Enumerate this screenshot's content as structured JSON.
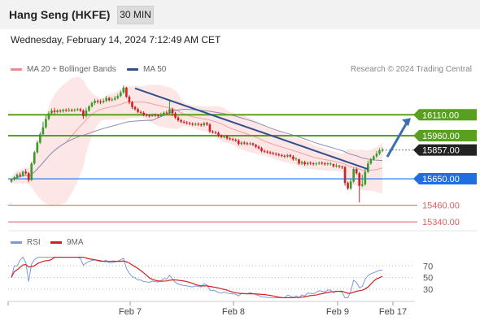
{
  "header": {
    "title": "Hang Seng (HKFE)",
    "interval": "30 MIN"
  },
  "timestamp": "Wednesday, February 14, 2024 7:12:49 AM CET",
  "legend": {
    "bollinger": "MA 20 + Bollinger Bands",
    "ma50": "MA 50",
    "credit": "Research © 2024 Trading Central"
  },
  "rsi_legend": {
    "rsi": "RSI",
    "ma": "9MA"
  },
  "colors": {
    "up": "#3a9a2a",
    "down": "#d01f1f",
    "trend": "#2f4f8f",
    "target": "#3b6fb0",
    "resistance": "#5aa020",
    "support_blue": "#1f6fe0",
    "support_red": "#e06060",
    "band": "#fde0e0",
    "ma50": "#8a8fb8",
    "rsi": "#7a9ad8",
    "rsi_ma": "#d02020"
  },
  "chart_data": {
    "type": "candlestick",
    "price_ylim": [
      15300,
      16380
    ],
    "levels": [
      {
        "label": "16110.00",
        "value": 16110,
        "kind": "resistance"
      },
      {
        "label": "15960.00",
        "value": 15960,
        "kind": "resistance"
      },
      {
        "label": "15857.00",
        "value": 15857,
        "kind": "current"
      },
      {
        "label": "15650.00",
        "value": 15650,
        "kind": "pivot"
      },
      {
        "label": "15460.00",
        "value": 15460,
        "kind": "support"
      },
      {
        "label": "15340.00",
        "value": 15340,
        "kind": "support"
      }
    ],
    "trendline": [
      [
        0.105,
        16300
      ],
      [
        0.46,
        15720
      ]
    ],
    "target_arrow": [
      [
        0.505,
        15870
      ],
      [
        0.535,
        16110
      ]
    ],
    "x_ticks": [
      {
        "label": "Feb 7",
        "pos": 0.155
      },
      {
        "label": "Feb 8",
        "pos": 0.278
      },
      {
        "label": "Feb 9",
        "pos": 0.405
      },
      {
        "label": "Feb 17",
        "pos": 0.47
      }
    ],
    "candles": [
      [
        15630,
        15645,
        15620,
        15652
      ],
      [
        15645,
        15660,
        15635,
        15670
      ],
      [
        15655,
        15680,
        15645,
        15690
      ],
      [
        15680,
        15672,
        15660,
        15695
      ],
      [
        15672,
        15700,
        15665,
        15710
      ],
      [
        15700,
        15690,
        15680,
        15720
      ],
      [
        15690,
        15640,
        15625,
        15700
      ],
      [
        15640,
        15760,
        15635,
        15770
      ],
      [
        15760,
        15840,
        15750,
        15850
      ],
      [
        15840,
        15910,
        15830,
        15925
      ],
      [
        15910,
        15970,
        15900,
        15985
      ],
      [
        15970,
        16020,
        15960,
        16060
      ],
      [
        16020,
        16080,
        16010,
        16110
      ],
      [
        16080,
        16120,
        16070,
        16135
      ],
      [
        16120,
        16140,
        16105,
        16155
      ],
      [
        16140,
        16130,
        16115,
        16160
      ],
      [
        16130,
        16140,
        16120,
        16150
      ],
      [
        16140,
        16135,
        16125,
        16150
      ],
      [
        16135,
        16145,
        16125,
        16155
      ],
      [
        16145,
        16140,
        16130,
        16155
      ],
      [
        16140,
        16145,
        16130,
        16160
      ],
      [
        16145,
        16140,
        16130,
        16155
      ],
      [
        16140,
        16145,
        16130,
        16155
      ],
      [
        16145,
        16150,
        16135,
        16160
      ],
      [
        16150,
        16140,
        16130,
        16160
      ],
      [
        16140,
        16100,
        16080,
        16150
      ],
      [
        16100,
        16140,
        16090,
        16160
      ],
      [
        16140,
        16170,
        16130,
        16180
      ],
      [
        16170,
        16195,
        16160,
        16205
      ],
      [
        16195,
        16210,
        16180,
        16225
      ],
      [
        16210,
        16205,
        16190,
        16220
      ],
      [
        16205,
        16200,
        16185,
        16220
      ],
      [
        16200,
        16210,
        16190,
        16225
      ],
      [
        16210,
        16230,
        16200,
        16245
      ],
      [
        16230,
        16215,
        16205,
        16240
      ],
      [
        16215,
        16220,
        16205,
        16235
      ],
      [
        16220,
        16230,
        16210,
        16245
      ],
      [
        16230,
        16245,
        16220,
        16260
      ],
      [
        16245,
        16270,
        16235,
        16285
      ],
      [
        16270,
        16305,
        16260,
        16320
      ],
      [
        16305,
        16240,
        16230,
        16310
      ],
      [
        16240,
        16200,
        16185,
        16250
      ],
      [
        16200,
        16165,
        16150,
        16210
      ],
      [
        16165,
        16150,
        16140,
        16175
      ],
      [
        16150,
        16130,
        16120,
        16160
      ],
      [
        16130,
        16125,
        16115,
        16140
      ],
      [
        16125,
        16110,
        16100,
        16135
      ],
      [
        16110,
        16105,
        16095,
        16120
      ],
      [
        16105,
        16100,
        16090,
        16115
      ],
      [
        16100,
        16110,
        16095,
        16120
      ],
      [
        16110,
        16105,
        16095,
        16120
      ],
      [
        16105,
        16100,
        16090,
        16115
      ],
      [
        16100,
        16110,
        16095,
        16125
      ],
      [
        16110,
        16125,
        16100,
        16135
      ],
      [
        16125,
        16120,
        16110,
        16140
      ],
      [
        16120,
        16150,
        16110,
        16210
      ],
      [
        16150,
        16120,
        16100,
        16160
      ],
      [
        16120,
        16090,
        16080,
        16130
      ],
      [
        16090,
        16070,
        16060,
        16100
      ],
      [
        16070,
        16060,
        16050,
        16080
      ],
      [
        16060,
        16055,
        16045,
        16070
      ],
      [
        16055,
        16050,
        16040,
        16065
      ],
      [
        16050,
        16045,
        16035,
        16060
      ],
      [
        16045,
        16040,
        16030,
        16055
      ],
      [
        16040,
        16045,
        16030,
        16055
      ],
      [
        16045,
        16040,
        16030,
        16055
      ],
      [
        16040,
        16035,
        16025,
        16050
      ],
      [
        16035,
        16050,
        16025,
        16060
      ],
      [
        16050,
        16040,
        16030,
        16060
      ],
      [
        16040,
        15990,
        15980,
        16050
      ],
      [
        15990,
        15985,
        15975,
        16000
      ],
      [
        15985,
        15980,
        15970,
        15995
      ],
      [
        15980,
        15960,
        15950,
        15990
      ],
      [
        15960,
        15950,
        15940,
        15970
      ],
      [
        15950,
        15955,
        15940,
        15965
      ],
      [
        15955,
        15940,
        15930,
        15965
      ],
      [
        15940,
        15935,
        15925,
        15950
      ],
      [
        15935,
        15930,
        15920,
        15945
      ],
      [
        15930,
        15925,
        15915,
        15940
      ],
      [
        15925,
        15900,
        15890,
        15935
      ],
      [
        15900,
        15910,
        15890,
        15920
      ],
      [
        15910,
        15905,
        15895,
        15920
      ],
      [
        15905,
        15900,
        15890,
        15915
      ],
      [
        15900,
        15905,
        15890,
        15915
      ],
      [
        15905,
        15895,
        15885,
        15910
      ],
      [
        15895,
        15880,
        15870,
        15900
      ],
      [
        15880,
        15870,
        15860,
        15890
      ],
      [
        15870,
        15850,
        15840,
        15880
      ],
      [
        15850,
        15845,
        15835,
        15860
      ],
      [
        15845,
        15840,
        15830,
        15855
      ],
      [
        15840,
        15835,
        15825,
        15850
      ],
      [
        15835,
        15830,
        15820,
        15845
      ],
      [
        15830,
        15825,
        15815,
        15840
      ],
      [
        15825,
        15820,
        15810,
        15835
      ],
      [
        15820,
        15815,
        15805,
        15830
      ],
      [
        15815,
        15810,
        15800,
        15825
      ],
      [
        15810,
        15820,
        15800,
        15830
      ],
      [
        15820,
        15810,
        15800,
        15830
      ],
      [
        15810,
        15790,
        15780,
        15820
      ],
      [
        15790,
        15795,
        15780,
        15805
      ],
      [
        15790,
        15760,
        15750,
        15795
      ],
      [
        15760,
        15770,
        15750,
        15780
      ],
      [
        15770,
        15755,
        15745,
        15780
      ],
      [
        15755,
        15765,
        15745,
        15775
      ],
      [
        15765,
        15760,
        15750,
        15775
      ],
      [
        15760,
        15755,
        15745,
        15770
      ],
      [
        15755,
        15760,
        15745,
        15770
      ],
      [
        15760,
        15765,
        15750,
        15775
      ],
      [
        15765,
        15760,
        15750,
        15775
      ],
      [
        15760,
        15755,
        15745,
        15770
      ],
      [
        15755,
        15760,
        15745,
        15770
      ],
      [
        15760,
        15760,
        15745,
        15770
      ],
      [
        15755,
        15740,
        15730,
        15760
      ],
      [
        15740,
        15745,
        15730,
        15760
      ],
      [
        15745,
        15740,
        15725,
        15750
      ],
      [
        15740,
        15735,
        15720,
        15745
      ],
      [
        15735,
        15620,
        15600,
        15740
      ],
      [
        15620,
        15580,
        15570,
        15630
      ],
      [
        15580,
        15630,
        15570,
        15650
      ],
      [
        15630,
        15720,
        15620,
        15730
      ],
      [
        15720,
        15690,
        15680,
        15730
      ],
      [
        15690,
        15600,
        15480,
        15700
      ],
      [
        15600,
        15610,
        15590,
        15680
      ],
      [
        15610,
        15700,
        15600,
        15720
      ],
      [
        15700,
        15760,
        15690,
        15780
      ],
      [
        15760,
        15790,
        15750,
        15800
      ],
      [
        15790,
        15810,
        15780,
        15820
      ],
      [
        15810,
        15830,
        15800,
        15850
      ],
      [
        15830,
        15855,
        15820,
        15870
      ],
      [
        15855,
        15857,
        15840,
        15875
      ]
    ],
    "rsi": {
      "ylim": [
        10,
        90
      ],
      "ticks": [
        70,
        50,
        30
      ]
    }
  }
}
